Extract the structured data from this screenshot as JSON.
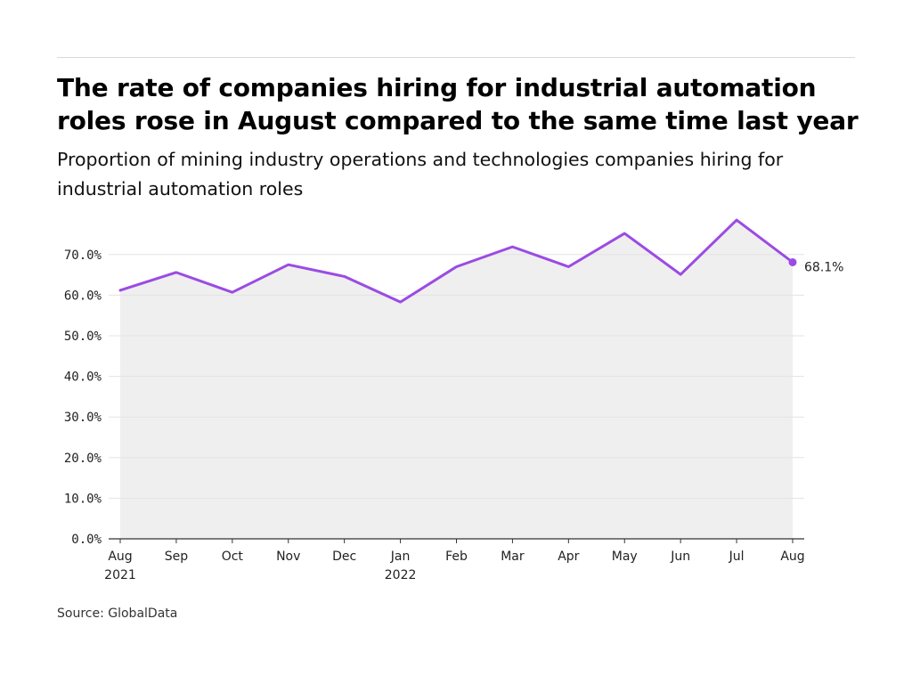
{
  "title": "The rate of companies hiring for industrial automation roles rose in August compared to the same time last year",
  "subtitle": "Proportion of mining industry operations and technologies companies hiring for industrial automation roles",
  "source": "Source: GlobalData",
  "colors": {
    "line": "#9b4be3",
    "area": "#efefef",
    "grid": "#e3e3e3",
    "axis": "#333333"
  },
  "chart_data": {
    "type": "area",
    "categories": [
      "Aug\n2021",
      "Sep",
      "Oct",
      "Nov",
      "Dec",
      "Jan\n2022",
      "Feb",
      "Mar",
      "Apr",
      "May",
      "Jun",
      "Jul",
      "Aug"
    ],
    "series": [
      {
        "values": [
          61.2,
          65.6,
          60.7,
          67.5,
          64.6,
          58.3,
          67.0,
          71.9,
          67.0,
          75.2,
          65.1,
          78.5,
          68.1
        ]
      }
    ],
    "yticks": [
      "0.0%",
      "10.0%",
      "20.0%",
      "30.0%",
      "40.0%",
      "50.0%",
      "60.0%",
      "70.0%"
    ],
    "ylim": [
      0,
      80
    ],
    "grid": true,
    "end_label": "68.1%",
    "xlabel": "",
    "ylabel": ""
  }
}
